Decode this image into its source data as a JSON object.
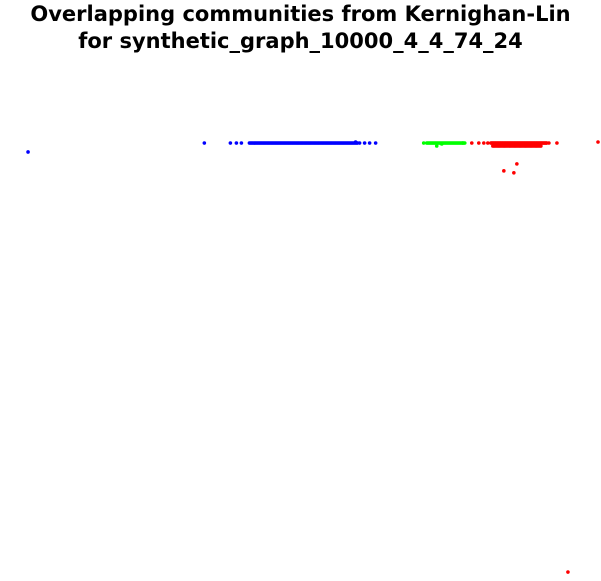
{
  "chart_data": {
    "type": "scatter",
    "title_lines": [
      "Overlapping communities from Kernighan-Lin",
      "for synthetic_graph_10000_4_4_74_24"
    ],
    "xlim": [
      0,
      600
    ],
    "ylim": [
      0,
      585
    ],
    "axes_visible": false,
    "grid": false,
    "legend": "none",
    "series": [
      {
        "color": "#0000ff",
        "points": [
          [
            28,
            432
          ],
          [
            204,
            441
          ],
          [
            230,
            441
          ],
          [
            236,
            441
          ],
          [
            241,
            441
          ],
          [
            375,
            441
          ],
          [
            369,
            441
          ],
          [
            364,
            441
          ],
          [
            359,
            441
          ],
          [
            355,
            442
          ]
        ],
        "segments": [
          {
            "x_start": 249,
            "x_end": 357,
            "y": 441,
            "count": 110
          }
        ]
      },
      {
        "color": "#00ff00",
        "points": [
          [
            423,
            441
          ],
          [
            436,
            438
          ],
          [
            441,
            440
          ],
          [
            462,
            441
          ]
        ],
        "segments": [
          {
            "x_start": 426,
            "x_end": 464,
            "y": 441,
            "count": 40
          }
        ]
      },
      {
        "color": "#ff0000",
        "points": [
          [
            471,
            441
          ],
          [
            478,
            441
          ],
          [
            483,
            441
          ],
          [
            487,
            441
          ],
          [
            548,
            441
          ],
          [
            556,
            441
          ],
          [
            597,
            442
          ],
          [
            516,
            420
          ],
          [
            503,
            413
          ],
          [
            513,
            411
          ],
          [
            567,
            9
          ],
          [
            497,
            440
          ],
          [
            528,
            439
          ]
        ],
        "segments": [
          {
            "x_start": 490,
            "x_end": 546,
            "y": 441,
            "count": 80
          },
          {
            "x_start": 492,
            "x_end": 540,
            "y": 438,
            "count": 40
          }
        ]
      }
    ]
  }
}
